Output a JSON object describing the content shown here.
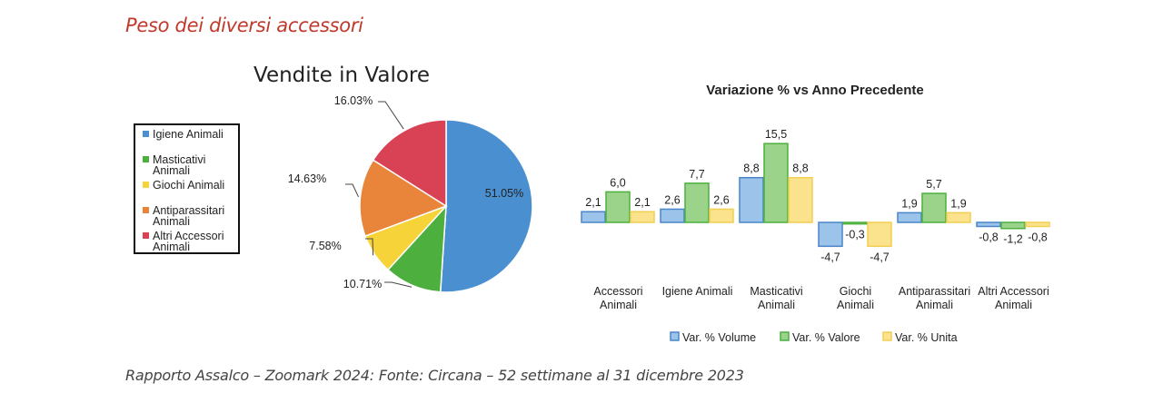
{
  "heading": "Peso dei diversi accessori",
  "footer": "Rapporto Assalco – Zoomark 2024: Fonte: Circana – 52 settimane al 31 dicembre 2023",
  "chart_data": [
    {
      "type": "pie",
      "title": "Vendite in Valore",
      "legend_position": "left",
      "slices": [
        {
          "name": "Igiene Animali",
          "value": 51.05,
          "label": "51.05%",
          "color": "#4a90d0"
        },
        {
          "name": "Masticativi Animali",
          "value": 10.71,
          "label": "10.71%",
          "color": "#4caf3e"
        },
        {
          "name": "Giochi Animali",
          "value": 7.58,
          "label": "7.58%",
          "color": "#f7d33a"
        },
        {
          "name": "Antiparassitari Animali",
          "value": 14.63,
          "label": "14.63%",
          "color": "#e8853a"
        },
        {
          "name": "Altri Accessori Animali",
          "value": 16.03,
          "label": "16.03%",
          "color": "#d94155"
        }
      ]
    },
    {
      "type": "bar",
      "title": "Variazione % vs Anno Precedente",
      "legend_position": "bottom",
      "categories": [
        "Accessori Animali",
        "Igiene Animali",
        "Masticativi Animali",
        "Giochi Animali",
        "Antiparassitari Animali",
        "Altri Accessori Animali"
      ],
      "series": [
        {
          "name": "Var. % Volume",
          "values": [
            2.1,
            2.6,
            8.8,
            -4.7,
            1.9,
            -0.8
          ],
          "labels": [
            "2,1",
            "2,6",
            "8,8",
            "-4,7",
            "1,9",
            "-0,8"
          ],
          "fill": "#9cc3ea",
          "stroke": "#4a86c8"
        },
        {
          "name": "Var. % Valore",
          "values": [
            6.0,
            7.7,
            15.5,
            -0.3,
            5.7,
            -1.2
          ],
          "labels": [
            "6,0",
            "7,7",
            "15,5",
            "-0,3",
            "5,7",
            "-1,2"
          ],
          "fill": "#9bd38a",
          "stroke": "#4caf3e"
        },
        {
          "name": "Var. % Unita",
          "values": [
            2.1,
            2.6,
            8.8,
            -4.7,
            1.9,
            -0.8
          ],
          "labels": [
            "2,1",
            "2,6",
            "8,8",
            "-4,7",
            "1,9",
            "-0,8"
          ],
          "fill": "#fbe38e",
          "stroke": "#f2cf52"
        }
      ]
    }
  ]
}
